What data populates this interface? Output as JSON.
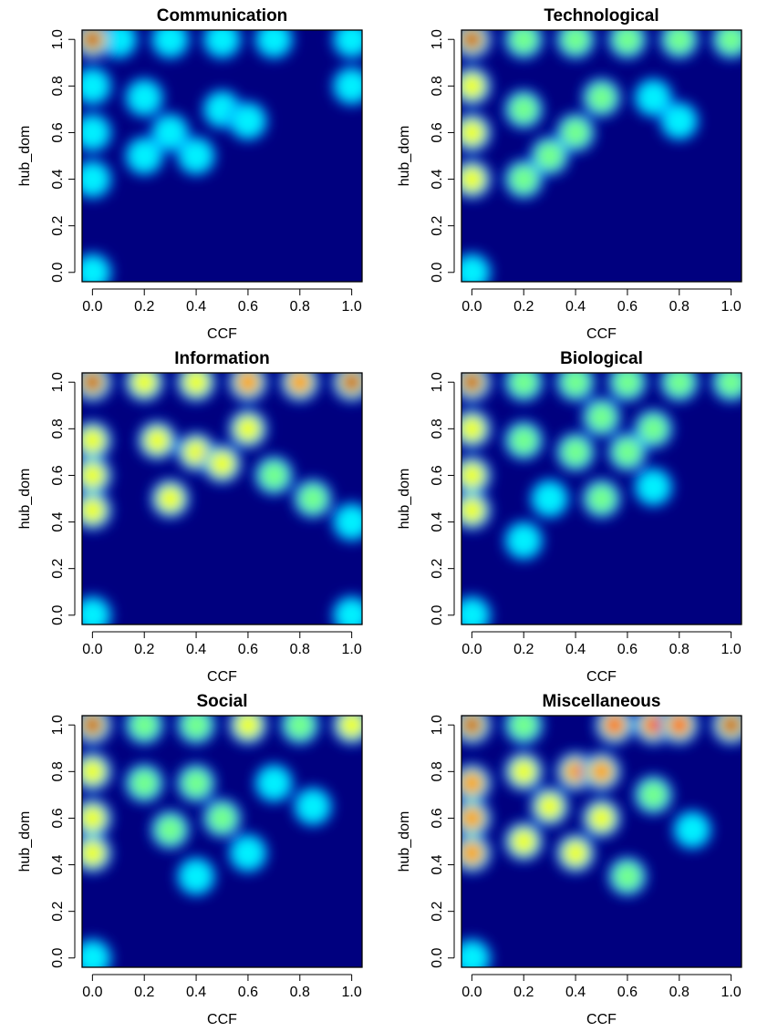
{
  "colormap": [
    "#00007f",
    "#0000ff",
    "#007fff",
    "#00ffff",
    "#7fff7f",
    "#ffff00",
    "#ff7f00",
    "#ff0000",
    "#7f0000"
  ],
  "chart_data": [
    {
      "type": "heatmap",
      "title": "Communication",
      "xlabel": "CCF",
      "ylabel": "hub_dom",
      "xlim": [
        0,
        1
      ],
      "ylim": [
        0,
        1
      ],
      "xticks": [
        "0.0",
        "0.2",
        "0.4",
        "0.6",
        "0.8",
        "1.0"
      ],
      "yticks": [
        "0.0",
        "0.2",
        "0.4",
        "0.6",
        "0.8",
        "1.0"
      ],
      "density_peaks": [
        {
          "x": 0.0,
          "y": 1.0,
          "level": 1.0
        },
        {
          "x": 0.1,
          "y": 1.0,
          "level": 0.35
        },
        {
          "x": 0.3,
          "y": 1.0,
          "level": 0.3
        },
        {
          "x": 0.5,
          "y": 1.0,
          "level": 0.3
        },
        {
          "x": 0.7,
          "y": 1.0,
          "level": 0.3
        },
        {
          "x": 1.0,
          "y": 1.0,
          "level": 0.35
        },
        {
          "x": 0.0,
          "y": 0.8,
          "level": 0.35
        },
        {
          "x": 0.0,
          "y": 0.6,
          "level": 0.35
        },
        {
          "x": 0.0,
          "y": 0.4,
          "level": 0.3
        },
        {
          "x": 0.0,
          "y": 0.0,
          "level": 0.3
        },
        {
          "x": 0.2,
          "y": 0.75,
          "level": 0.3
        },
        {
          "x": 0.3,
          "y": 0.6,
          "level": 0.3
        },
        {
          "x": 0.4,
          "y": 0.5,
          "level": 0.3
        },
        {
          "x": 0.5,
          "y": 0.7,
          "level": 0.3
        },
        {
          "x": 0.6,
          "y": 0.65,
          "level": 0.3
        },
        {
          "x": 0.2,
          "y": 0.5,
          "level": 0.3
        },
        {
          "x": 1.0,
          "y": 0.8,
          "level": 0.3
        }
      ]
    },
    {
      "type": "heatmap",
      "title": "Technological",
      "xlabel": "CCF",
      "ylabel": "hub_dom",
      "xlim": [
        0,
        1
      ],
      "ylim": [
        0,
        1
      ],
      "xticks": [
        "0.0",
        "0.2",
        "0.4",
        "0.6",
        "0.8",
        "1.0"
      ],
      "yticks": [
        "0.0",
        "0.2",
        "0.4",
        "0.6",
        "0.8",
        "1.0"
      ],
      "density_peaks": [
        {
          "x": 0.0,
          "y": 1.0,
          "level": 1.0
        },
        {
          "x": 0.2,
          "y": 1.0,
          "level": 0.4
        },
        {
          "x": 0.4,
          "y": 1.0,
          "level": 0.4
        },
        {
          "x": 0.6,
          "y": 1.0,
          "level": 0.45
        },
        {
          "x": 0.8,
          "y": 1.0,
          "level": 0.4
        },
        {
          "x": 1.0,
          "y": 1.0,
          "level": 0.45
        },
        {
          "x": 0.0,
          "y": 0.8,
          "level": 0.5
        },
        {
          "x": 0.0,
          "y": 0.6,
          "level": 0.55
        },
        {
          "x": 0.0,
          "y": 0.4,
          "level": 0.5
        },
        {
          "x": 0.0,
          "y": 0.0,
          "level": 0.3
        },
        {
          "x": 0.2,
          "y": 0.7,
          "level": 0.45
        },
        {
          "x": 0.3,
          "y": 0.5,
          "level": 0.45
        },
        {
          "x": 0.4,
          "y": 0.6,
          "level": 0.4
        },
        {
          "x": 0.5,
          "y": 0.75,
          "level": 0.4
        },
        {
          "x": 0.7,
          "y": 0.75,
          "level": 0.35
        },
        {
          "x": 0.2,
          "y": 0.4,
          "level": 0.4
        },
        {
          "x": 0.8,
          "y": 0.65,
          "level": 0.35
        }
      ]
    },
    {
      "type": "heatmap",
      "title": "Information",
      "xlabel": "CCF",
      "ylabel": "hub_dom",
      "xlim": [
        0,
        1
      ],
      "ylim": [
        0,
        1
      ],
      "xticks": [
        "0.0",
        "0.2",
        "0.4",
        "0.6",
        "0.8",
        "1.0"
      ],
      "yticks": [
        "0.0",
        "0.2",
        "0.4",
        "0.6",
        "0.8",
        "1.0"
      ],
      "density_peaks": [
        {
          "x": 0.0,
          "y": 1.0,
          "level": 1.0
        },
        {
          "x": 0.2,
          "y": 1.0,
          "level": 0.55
        },
        {
          "x": 0.4,
          "y": 1.0,
          "level": 0.55
        },
        {
          "x": 0.6,
          "y": 1.0,
          "level": 0.65
        },
        {
          "x": 0.8,
          "y": 1.0,
          "level": 0.7
        },
        {
          "x": 1.0,
          "y": 1.0,
          "level": 1.0
        },
        {
          "x": 0.0,
          "y": 0.75,
          "level": 0.55
        },
        {
          "x": 0.0,
          "y": 0.6,
          "level": 0.55
        },
        {
          "x": 0.0,
          "y": 0.45,
          "level": 0.5
        },
        {
          "x": 0.0,
          "y": 0.0,
          "level": 0.3
        },
        {
          "x": 0.25,
          "y": 0.75,
          "level": 0.5
        },
        {
          "x": 0.4,
          "y": 0.7,
          "level": 0.55
        },
        {
          "x": 0.5,
          "y": 0.65,
          "level": 0.55
        },
        {
          "x": 0.3,
          "y": 0.5,
          "level": 0.5
        },
        {
          "x": 0.6,
          "y": 0.8,
          "level": 0.5
        },
        {
          "x": 0.7,
          "y": 0.6,
          "level": 0.45
        },
        {
          "x": 0.85,
          "y": 0.5,
          "level": 0.4
        },
        {
          "x": 1.0,
          "y": 0.4,
          "level": 0.35
        },
        {
          "x": 1.0,
          "y": 0.0,
          "level": 0.3
        }
      ]
    },
    {
      "type": "heatmap",
      "title": "Biological",
      "xlabel": "CCF",
      "ylabel": "hub_dom",
      "xlim": [
        0,
        1
      ],
      "ylim": [
        0,
        1
      ],
      "xticks": [
        "0.0",
        "0.2",
        "0.4",
        "0.6",
        "0.8",
        "1.0"
      ],
      "yticks": [
        "0.0",
        "0.2",
        "0.4",
        "0.6",
        "0.8",
        "1.0"
      ],
      "density_peaks": [
        {
          "x": 0.0,
          "y": 1.0,
          "level": 1.0
        },
        {
          "x": 0.2,
          "y": 1.0,
          "level": 0.4
        },
        {
          "x": 0.4,
          "y": 1.0,
          "level": 0.4
        },
        {
          "x": 0.6,
          "y": 1.0,
          "level": 0.4
        },
        {
          "x": 0.8,
          "y": 1.0,
          "level": 0.4
        },
        {
          "x": 1.0,
          "y": 1.0,
          "level": 0.45
        },
        {
          "x": 0.0,
          "y": 0.8,
          "level": 0.55
        },
        {
          "x": 0.0,
          "y": 0.6,
          "level": 0.55
        },
        {
          "x": 0.0,
          "y": 0.45,
          "level": 0.5
        },
        {
          "x": 0.0,
          "y": 0.0,
          "level": 0.35
        },
        {
          "x": 0.2,
          "y": 0.75,
          "level": 0.4
        },
        {
          "x": 0.4,
          "y": 0.7,
          "level": 0.4
        },
        {
          "x": 0.5,
          "y": 0.85,
          "level": 0.4
        },
        {
          "x": 0.6,
          "y": 0.7,
          "level": 0.4
        },
        {
          "x": 0.7,
          "y": 0.8,
          "level": 0.4
        },
        {
          "x": 0.3,
          "y": 0.5,
          "level": 0.35
        },
        {
          "x": 0.5,
          "y": 0.5,
          "level": 0.4
        },
        {
          "x": 0.2,
          "y": 0.32,
          "level": 0.35
        },
        {
          "x": 0.7,
          "y": 0.55,
          "level": 0.35
        }
      ]
    },
    {
      "type": "heatmap",
      "title": "Social",
      "xlabel": "CCF",
      "ylabel": "hub_dom",
      "xlim": [
        0,
        1
      ],
      "ylim": [
        0,
        1
      ],
      "xticks": [
        "0.0",
        "0.2",
        "0.4",
        "0.6",
        "0.8",
        "1.0"
      ],
      "yticks": [
        "0.0",
        "0.2",
        "0.4",
        "0.6",
        "0.8",
        "1.0"
      ],
      "density_peaks": [
        {
          "x": 0.0,
          "y": 1.0,
          "level": 1.0
        },
        {
          "x": 0.2,
          "y": 1.0,
          "level": 0.45
        },
        {
          "x": 0.4,
          "y": 1.0,
          "level": 0.45
        },
        {
          "x": 0.6,
          "y": 1.0,
          "level": 0.5
        },
        {
          "x": 0.8,
          "y": 1.0,
          "level": 0.45
        },
        {
          "x": 1.0,
          "y": 1.0,
          "level": 0.6
        },
        {
          "x": 0.0,
          "y": 0.8,
          "level": 0.55
        },
        {
          "x": 0.0,
          "y": 0.6,
          "level": 0.55
        },
        {
          "x": 0.0,
          "y": 0.45,
          "level": 0.5
        },
        {
          "x": 0.0,
          "y": 0.0,
          "level": 0.35
        },
        {
          "x": 0.2,
          "y": 0.75,
          "level": 0.4
        },
        {
          "x": 0.4,
          "y": 0.75,
          "level": 0.45
        },
        {
          "x": 0.5,
          "y": 0.6,
          "level": 0.4
        },
        {
          "x": 0.3,
          "y": 0.55,
          "level": 0.4
        },
        {
          "x": 0.7,
          "y": 0.75,
          "level": 0.35
        },
        {
          "x": 0.6,
          "y": 0.45,
          "level": 0.35
        },
        {
          "x": 0.85,
          "y": 0.65,
          "level": 0.3
        },
        {
          "x": 0.4,
          "y": 0.35,
          "level": 0.35
        }
      ]
    },
    {
      "type": "heatmap",
      "title": "Miscellaneous",
      "xlabel": "CCF",
      "ylabel": "hub_dom",
      "xlim": [
        0,
        1
      ],
      "ylim": [
        0,
        1
      ],
      "xticks": [
        "0.0",
        "0.2",
        "0.4",
        "0.6",
        "0.8",
        "1.0"
      ],
      "yticks": [
        "0.0",
        "0.2",
        "0.4",
        "0.6",
        "0.8",
        "1.0"
      ],
      "density_peaks": [
        {
          "x": 0.0,
          "y": 1.0,
          "level": 1.0
        },
        {
          "x": 0.2,
          "y": 1.0,
          "level": 0.45
        },
        {
          "x": 0.55,
          "y": 1.0,
          "level": 0.85
        },
        {
          "x": 0.7,
          "y": 1.0,
          "level": 0.9
        },
        {
          "x": 0.8,
          "y": 1.0,
          "level": 0.9
        },
        {
          "x": 1.0,
          "y": 1.0,
          "level": 1.0
        },
        {
          "x": 0.0,
          "y": 0.75,
          "level": 0.7
        },
        {
          "x": 0.0,
          "y": 0.6,
          "level": 0.75
        },
        {
          "x": 0.0,
          "y": 0.45,
          "level": 0.7
        },
        {
          "x": 0.0,
          "y": 0.0,
          "level": 0.35
        },
        {
          "x": 0.2,
          "y": 0.8,
          "level": 0.55
        },
        {
          "x": 0.4,
          "y": 0.8,
          "level": 0.7
        },
        {
          "x": 0.5,
          "y": 0.8,
          "level": 0.75
        },
        {
          "x": 0.3,
          "y": 0.65,
          "level": 0.6
        },
        {
          "x": 0.5,
          "y": 0.6,
          "level": 0.55
        },
        {
          "x": 0.2,
          "y": 0.5,
          "level": 0.55
        },
        {
          "x": 0.4,
          "y": 0.45,
          "level": 0.5
        },
        {
          "x": 0.7,
          "y": 0.7,
          "level": 0.45
        },
        {
          "x": 0.85,
          "y": 0.55,
          "level": 0.35
        },
        {
          "x": 0.6,
          "y": 0.35,
          "level": 0.4
        }
      ]
    }
  ]
}
